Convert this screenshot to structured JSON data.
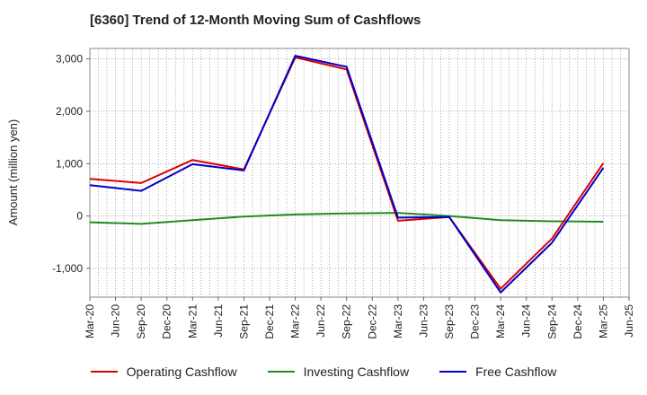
{
  "chart_data": {
    "type": "line",
    "title": "[6360]  Trend of 12-Month Moving Sum of Cashflows",
    "ylabel": "Amount (million yen)",
    "xlabel": "",
    "categories": [
      "Mar-20",
      "Jun-20",
      "Sep-20",
      "Dec-20",
      "Mar-21",
      "Jun-21",
      "Sep-21",
      "Dec-21",
      "Mar-22",
      "Jun-22",
      "Sep-22",
      "Dec-22",
      "Mar-23",
      "Jun-23",
      "Sep-23",
      "Dec-23",
      "Mar-24",
      "Jun-24",
      "Sep-24",
      "Dec-24",
      "Mar-25",
      "Jun-25"
    ],
    "yticks": [
      -1000,
      0,
      1000,
      2000,
      3000
    ],
    "ytick_labels": [
      "-1,000",
      "0",
      "1,000",
      "2,000",
      "3,000"
    ],
    "ylim": [
      -1550,
      3200
    ],
    "grid": true,
    "legend_position": "bottom",
    "series": [
      {
        "name": "Operating Cashflow",
        "color": "#dd0000",
        "x": [
          "Mar-20",
          "Sep-20",
          "Mar-21",
          "Sep-21",
          "Mar-22",
          "Sep-22",
          "Mar-23",
          "Sep-23",
          "Mar-24",
          "Sep-24",
          "Mar-25"
        ],
        "values": [
          710,
          630,
          1070,
          890,
          3030,
          2800,
          -90,
          -20,
          -1390,
          -430,
          1010
        ]
      },
      {
        "name": "Investing Cashflow",
        "color": "#228b22",
        "x": [
          "Mar-20",
          "Sep-20",
          "Mar-21",
          "Sep-21",
          "Mar-22",
          "Sep-22",
          "Mar-23",
          "Sep-23",
          "Mar-24",
          "Sep-24",
          "Mar-25"
        ],
        "values": [
          -120,
          -150,
          -80,
          -10,
          30,
          50,
          60,
          0,
          -80,
          -100,
          -110
        ]
      },
      {
        "name": "Free Cashflow",
        "color": "#0000cc",
        "x": [
          "Mar-20",
          "Sep-20",
          "Mar-21",
          "Sep-21",
          "Mar-22",
          "Sep-22",
          "Mar-23",
          "Sep-23",
          "Mar-24",
          "Sep-24",
          "Mar-25"
        ],
        "values": [
          590,
          480,
          990,
          870,
          3060,
          2850,
          -30,
          -20,
          -1460,
          -510,
          920
        ]
      }
    ]
  }
}
